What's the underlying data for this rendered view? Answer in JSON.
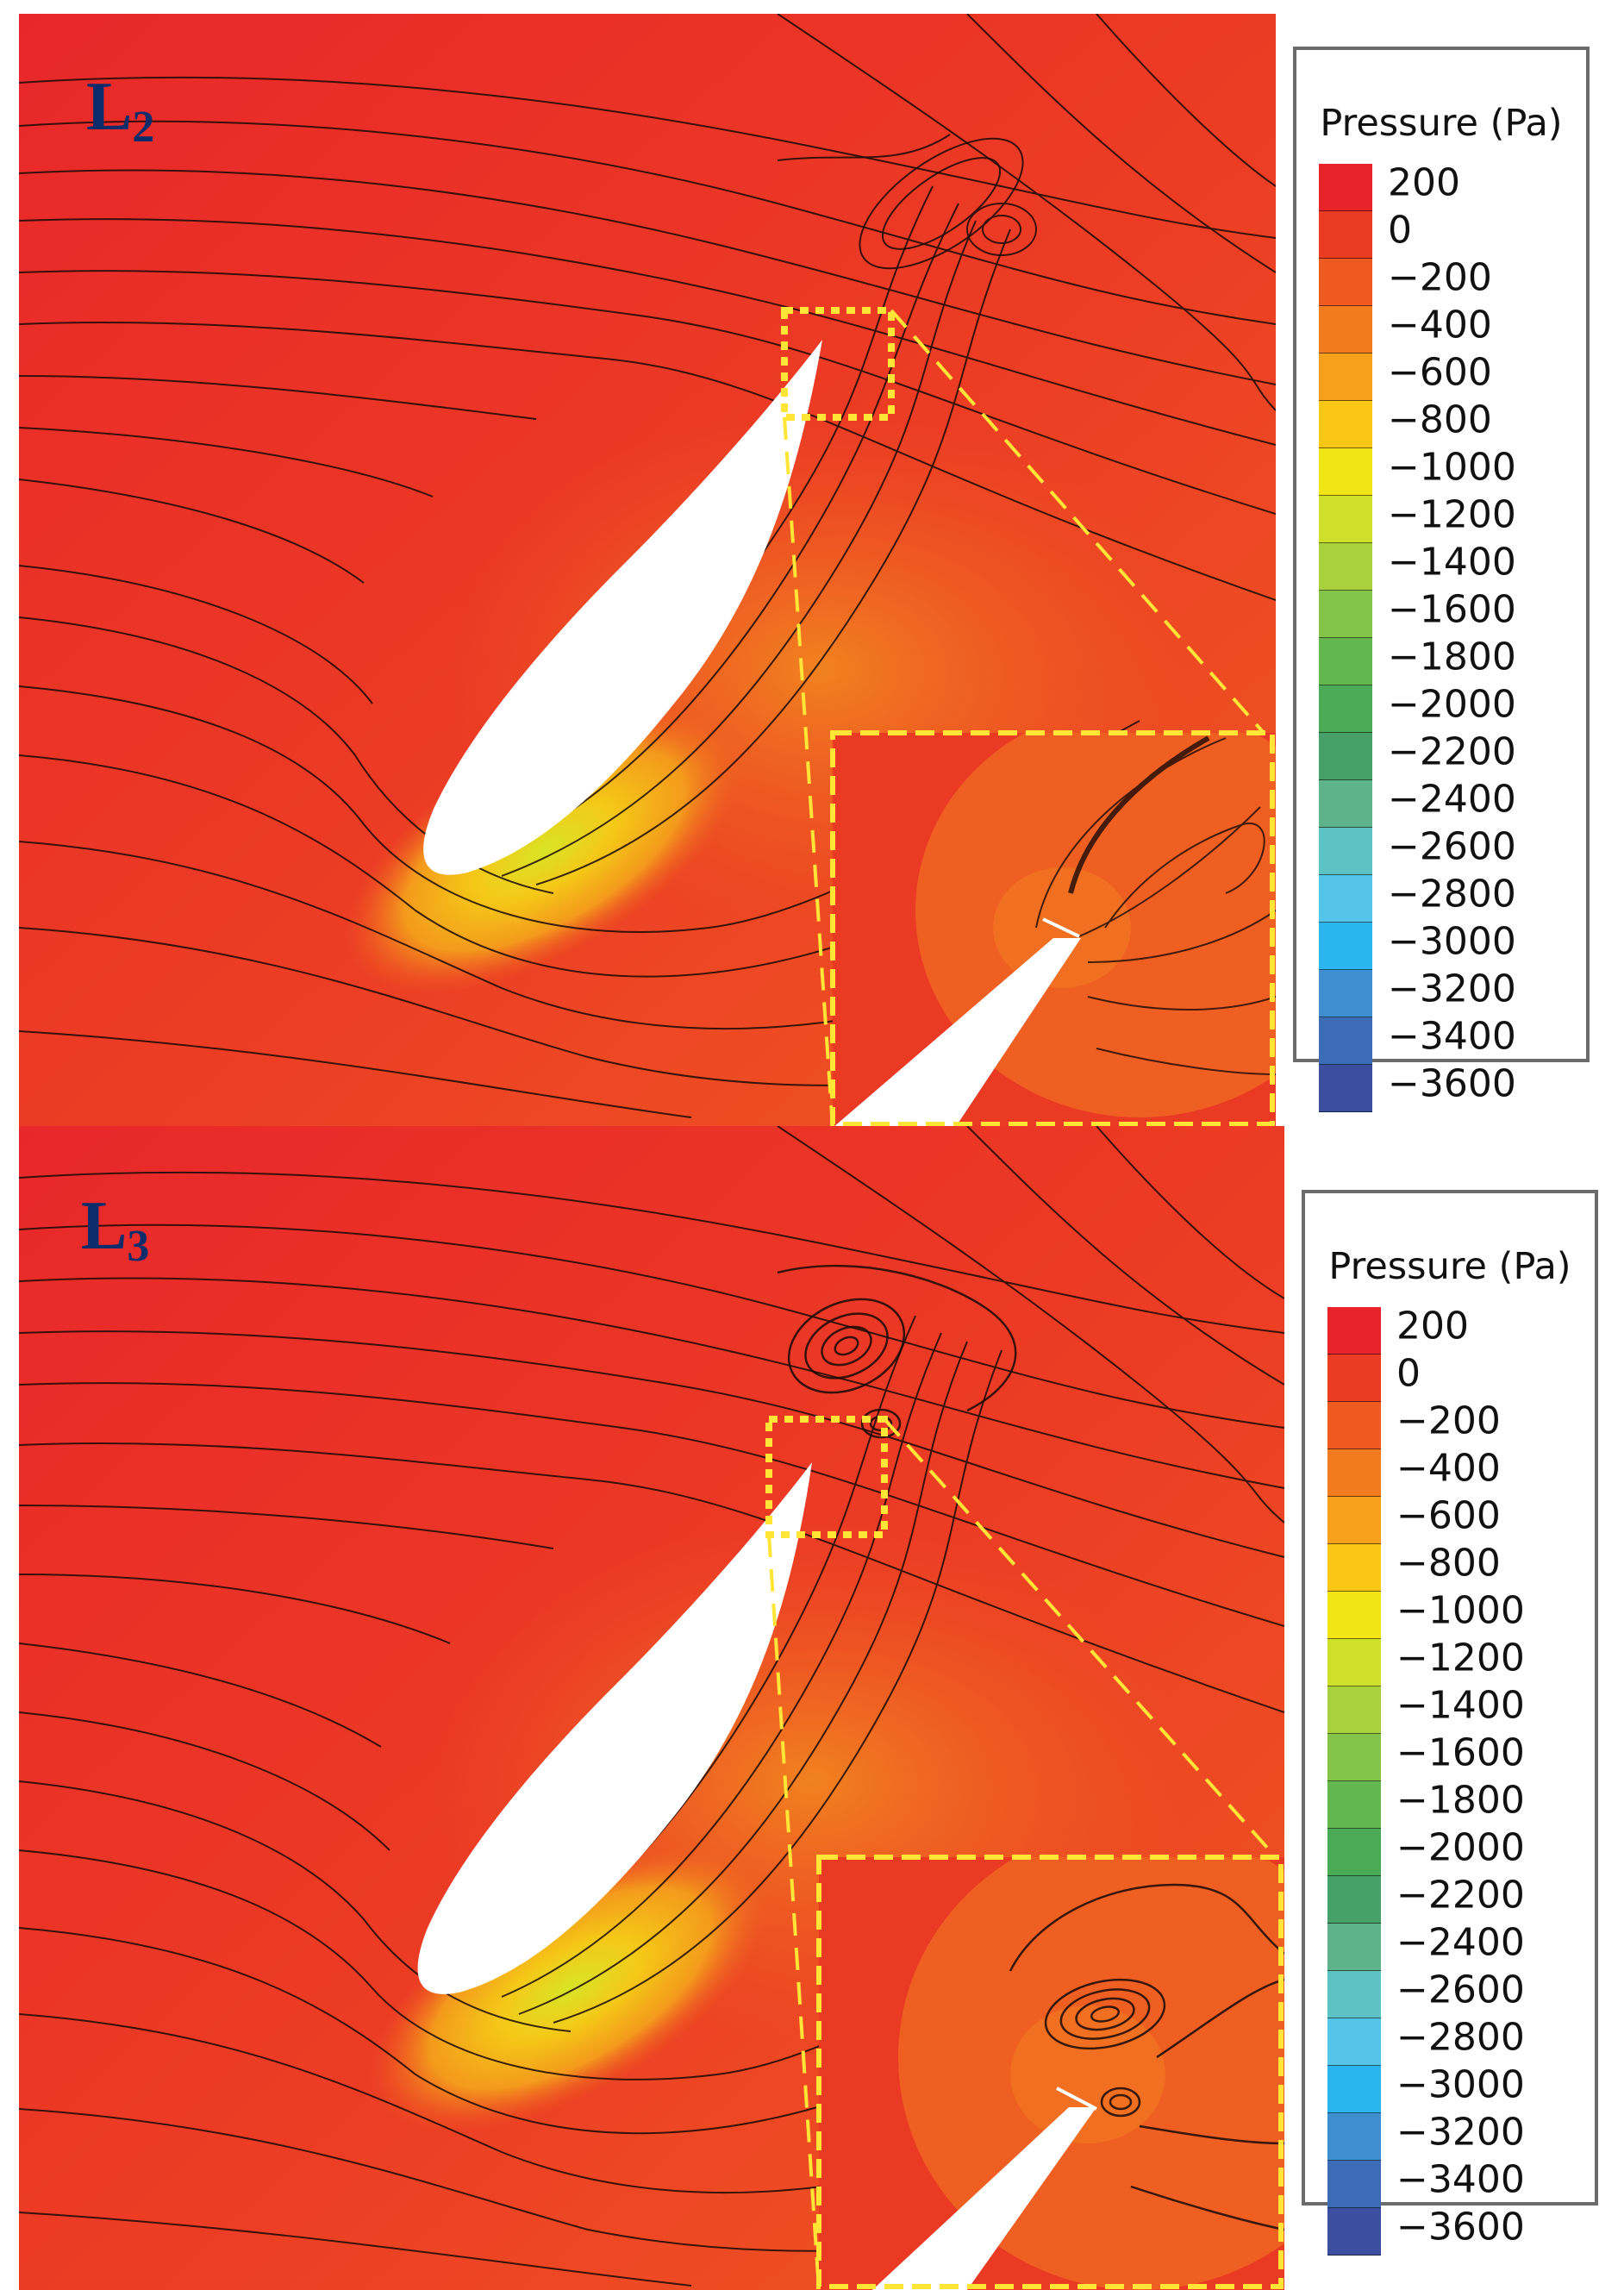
{
  "panels": [
    {
      "label_main": "L",
      "label_sub": "2",
      "legend_title": "Pressure (Pa)",
      "legend_ticks": [
        "200",
        "0",
        "−200",
        "−400",
        "−600",
        "−800",
        "−1000",
        "−1200",
        "−1400",
        "−1600",
        "−1800",
        "−2000",
        "−2200",
        "−2400",
        "−2600",
        "−2800",
        "−3000",
        "−3200",
        "−3400",
        "−3600"
      ]
    },
    {
      "label_main": "L",
      "label_sub": "3",
      "legend_title": "Pressure (Pa)",
      "legend_ticks": [
        "200",
        "0",
        "−200",
        "−400",
        "−600",
        "−800",
        "−1000",
        "−1200",
        "−1400",
        "−1600",
        "−1800",
        "−2000",
        "−2200",
        "−2400",
        "−2600",
        "−2800",
        "−3000",
        "−3200",
        "−3400",
        "−3600"
      ]
    }
  ],
  "colormap": [
    "#e8232a",
    "#ec3b23",
    "#ee5a20",
    "#f27a1f",
    "#f7a01c",
    "#fbc716",
    "#f2e515",
    "#cfe02a",
    "#a9d13d",
    "#84c448",
    "#62b84e",
    "#4aaa55",
    "#46a067",
    "#5fb38a",
    "#5cc2c4",
    "#54c5e8",
    "#2bb5ee",
    "#3f8fd0",
    "#3d6cb6",
    "#3b4ea0"
  ],
  "colors": {
    "highlight": "#ffe535",
    "label": "#0d2c6c",
    "legend_border": "#6b6b6b"
  }
}
